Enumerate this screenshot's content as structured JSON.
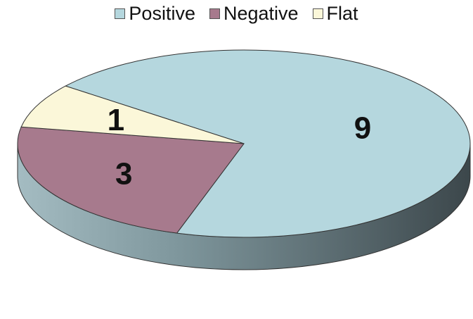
{
  "chart_data": {
    "type": "pie",
    "title": "",
    "categories": [
      "Positive",
      "Negative",
      "Flat"
    ],
    "values": [
      9,
      3,
      1
    ],
    "data_labels": [
      "9",
      "3",
      "1"
    ],
    "colors": {
      "Positive": "#b5d7de",
      "Negative": "#a77a8d",
      "Flat": "#fbf7d9"
    },
    "style": "3d",
    "legend_position": "top"
  }
}
